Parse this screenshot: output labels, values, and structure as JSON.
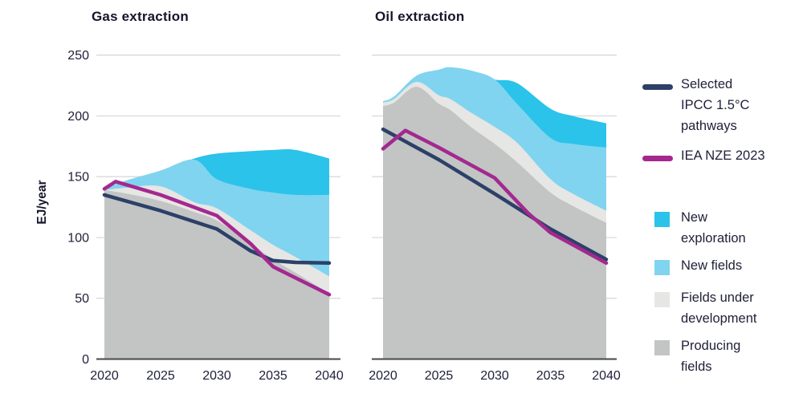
{
  "titles": {
    "gas": "Gas extraction",
    "oil": "Oil extraction"
  },
  "y_axis": {
    "label": "EJ/year",
    "ticks": [
      0,
      50,
      100,
      150,
      200,
      250
    ],
    "max": 250
  },
  "x_axis": {
    "ticks": [
      2020,
      2025,
      2030,
      2035,
      2040
    ]
  },
  "legend": {
    "lines": [
      {
        "id": "ipcc",
        "label": "Selected IPCC 1.5°C pathways",
        "color": "#2c4068"
      },
      {
        "id": "iea",
        "label": "IEA NZE 2023",
        "color": "#a42890"
      }
    ],
    "areas": [
      {
        "id": "new_exploration",
        "label": "New exploration",
        "color": "#2bc3e9"
      },
      {
        "id": "new_fields",
        "label": "New fields",
        "color": "#80d4f0"
      },
      {
        "id": "fields_under_development",
        "label": "Fields under development",
        "color": "#e6e6e4"
      },
      {
        "id": "producing_fields",
        "label": "Producing fields",
        "color": "#c2c5c4"
      }
    ]
  },
  "chart_data": [
    {
      "id": "gas",
      "type": "area",
      "title": "Gas extraction",
      "ylabel": "EJ/year",
      "ylim": [
        0,
        250
      ],
      "xlim": [
        2020,
        2040
      ],
      "grid": "horizontal",
      "x": [
        2020,
        2022,
        2025,
        2028,
        2030,
        2033,
        2035,
        2037,
        2040
      ],
      "stacked_series_cumulative_tops": [
        {
          "id": "producing_fields",
          "name": "Producing fields",
          "values": [
            139,
            136,
            130,
            121,
            114,
            95,
            82,
            71,
            54
          ]
        },
        {
          "id": "fields_under_development",
          "name": "Fields under development",
          "values": [
            139,
            141,
            142,
            129,
            124,
            106,
            94,
            84,
            68
          ]
        },
        {
          "id": "new_fields",
          "name": "New fields",
          "values": [
            140,
            147,
            155,
            164,
            148,
            140,
            137,
            135,
            135
          ]
        },
        {
          "id": "new_exploration",
          "name": "New exploration",
          "values": [
            140,
            147,
            155,
            165,
            169,
            171,
            172,
            172,
            165
          ]
        }
      ],
      "lines": [
        {
          "id": "ipcc",
          "name": "Selected IPCC 1.5°C pathways",
          "x": [
            2020,
            2025,
            2030,
            2033,
            2035,
            2037,
            2040
          ],
          "values": [
            135,
            122,
            107,
            89,
            81,
            79.5,
            79
          ]
        },
        {
          "id": "iea",
          "name": "IEA NZE 2023",
          "x": [
            2020,
            2021,
            2025,
            2030,
            2033,
            2035,
            2040
          ],
          "values": [
            140,
            146,
            135,
            118,
            95,
            76,
            53
          ]
        }
      ]
    },
    {
      "id": "oil",
      "type": "area",
      "title": "Oil extraction",
      "ylabel": "EJ/year",
      "ylim": [
        0,
        250
      ],
      "xlim": [
        2020,
        2040
      ],
      "grid": "horizontal",
      "x": [
        2020,
        2021,
        2023,
        2025,
        2026,
        2028,
        2030,
        2032,
        2035,
        2037,
        2040
      ],
      "stacked_series_cumulative_tops": [
        {
          "id": "producing_fields",
          "name": "Producing fields",
          "values": [
            208,
            211,
            224,
            210,
            205,
            190,
            177,
            162,
            137,
            126,
            112
          ]
        },
        {
          "id": "fields_under_development",
          "name": "Fields under development",
          "values": [
            211,
            214,
            228,
            217,
            214,
            202,
            191,
            178,
            148,
            136,
            122
          ]
        },
        {
          "id": "new_fields",
          "name": "New fields",
          "values": [
            212,
            216,
            233,
            238,
            240,
            237,
            230,
            210,
            182,
            177,
            174
          ]
        },
        {
          "id": "new_exploration",
          "name": "New exploration",
          "values": [
            212,
            216,
            233,
            238,
            240,
            237,
            230,
            227,
            206,
            200,
            194
          ]
        }
      ],
      "lines": [
        {
          "id": "ipcc",
          "name": "Selected IPCC 1.5°C pathways",
          "x": [
            2020,
            2025,
            2030,
            2035,
            2040
          ],
          "values": [
            189,
            164,
            136,
            107,
            82
          ]
        },
        {
          "id": "iea",
          "name": "IEA NZE 2023",
          "x": [
            2020,
            2022,
            2025,
            2030,
            2033,
            2035,
            2040
          ],
          "values": [
            173,
            188,
            174,
            149,
            120,
            104,
            79
          ]
        }
      ]
    }
  ]
}
